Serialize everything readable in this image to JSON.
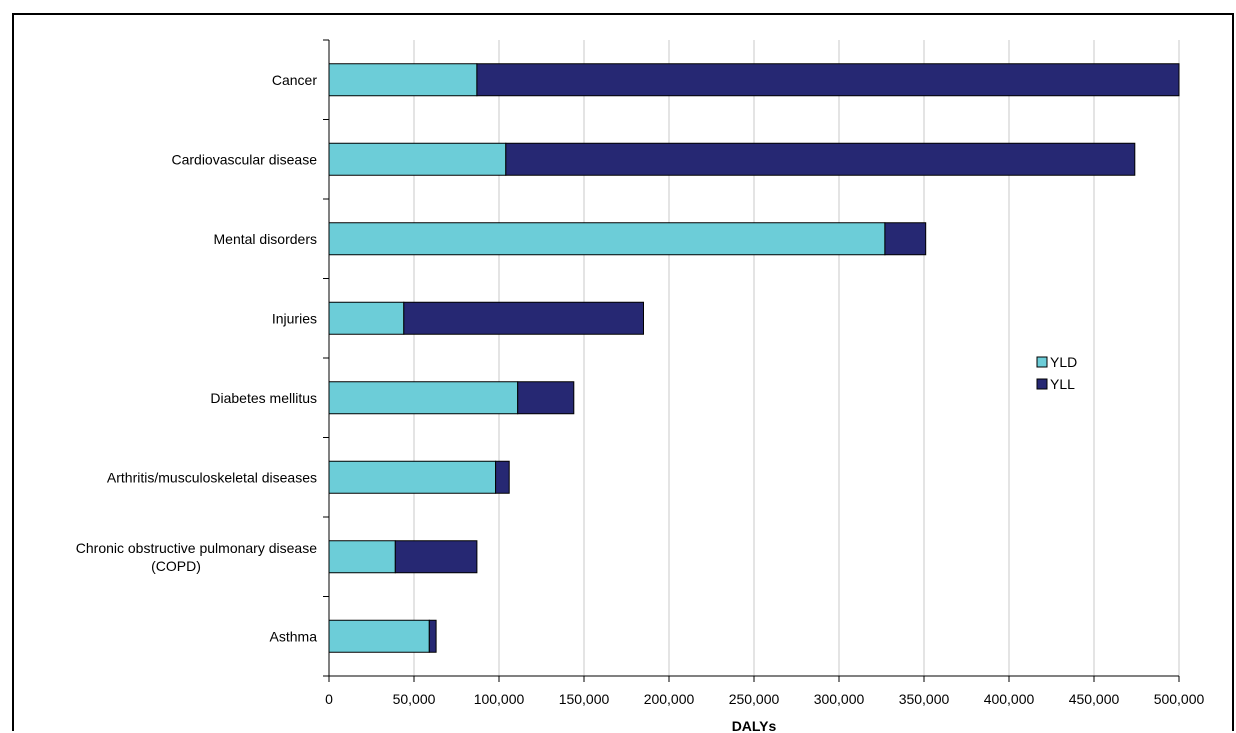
{
  "chart_data": {
    "type": "bar",
    "orientation": "horizontal",
    "stacked": true,
    "categories": [
      "Cancer",
      "Cardiovascular disease",
      "Mental disorders",
      "Injuries",
      "Diabetes mellitus",
      "Arthritis/musculoskeletal diseases",
      "Chronic obstructive pulmonary disease (COPD)",
      "Asthma"
    ],
    "category_label_lines": [
      [
        "Cancer"
      ],
      [
        "Cardiovascular disease"
      ],
      [
        "Mental disorders"
      ],
      [
        "Injuries"
      ],
      [
        "Diabetes mellitus"
      ],
      [
        "Arthritis/musculoskeletal diseases"
      ],
      [
        "Chronic obstructive pulmonary disease",
        "(COPD)"
      ],
      [
        "Asthma"
      ]
    ],
    "series": [
      {
        "name": "YLD",
        "color": "#6ccdd8",
        "values": [
          87000,
          104000,
          327000,
          44000,
          111000,
          98000,
          39000,
          59000
        ]
      },
      {
        "name": "YLL",
        "color": "#262873",
        "values": [
          413000,
          370000,
          24000,
          141000,
          33000,
          8000,
          48000,
          4000
        ]
      }
    ],
    "xlim": [
      0,
      500000
    ],
    "xticks": [
      0,
      50000,
      100000,
      150000,
      200000,
      250000,
      300000,
      350000,
      400000,
      450000,
      500000
    ],
    "xtick_labels": [
      "0",
      "50,000",
      "100,000",
      "150,000",
      "200,000",
      "250,000",
      "300,000",
      "350,000",
      "400,000",
      "450,000",
      "500,000"
    ],
    "xlabel": "DALYs",
    "ylabel": "",
    "title": "",
    "grid": "vertical",
    "legend_position": "right"
  }
}
